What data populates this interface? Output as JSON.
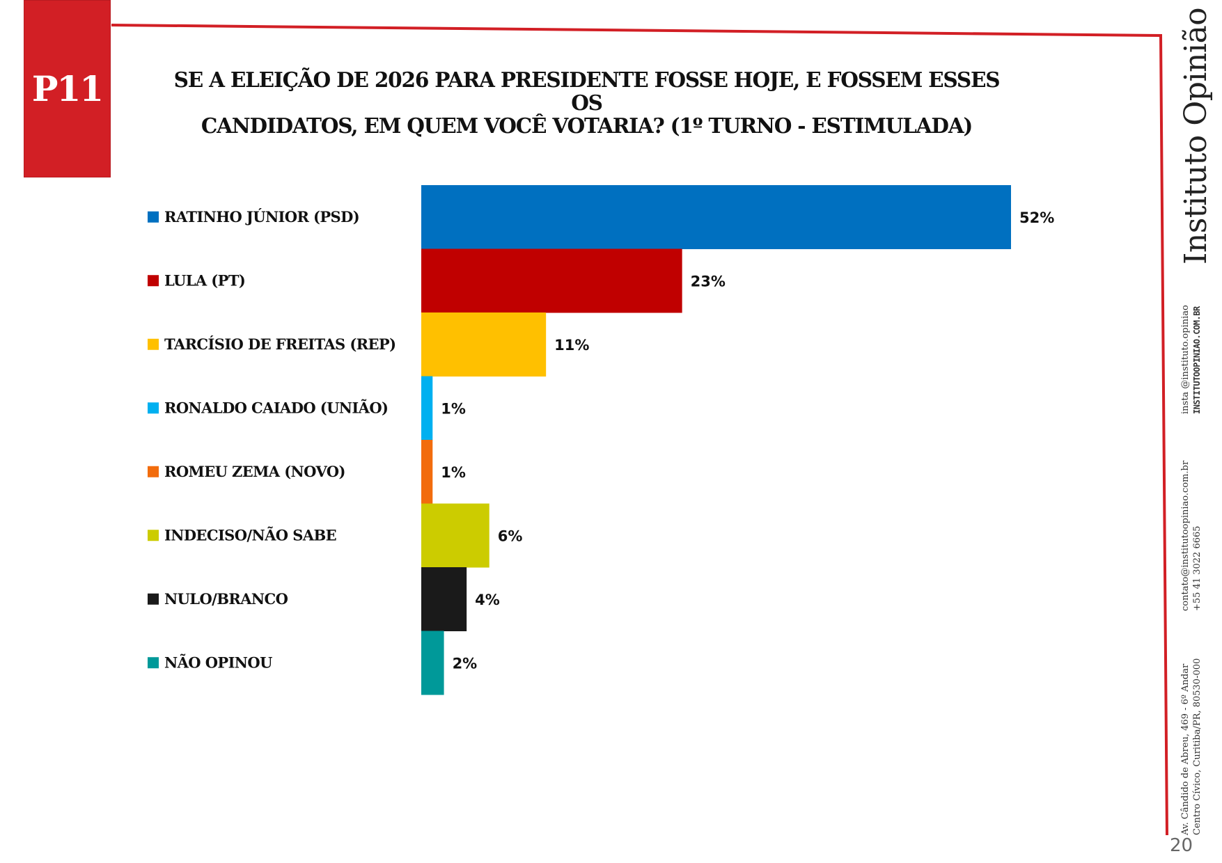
{
  "header": {
    "badge": "P11",
    "title_line1": "SE A ELEIÇÃO DE 2026 PARA PRESIDENTE FOSSE HOJE, E FOSSEM ESSES OS",
    "title_line2": "CANDIDATOS, EM QUEM VOCÊ VOTARIA? (1º TURNO - ESTIMULADA)"
  },
  "chart_data": {
    "type": "bar",
    "orientation": "horizontal",
    "title": "SE A ELEIÇÃO DE 2026 PARA PRESIDENTE FOSSE HOJE, E FOSSEM ESSES OS CANDIDATOS, EM QUEM VOCÊ VOTARIA? (1º TURNO - ESTIMULADA)",
    "categories": [
      "RATINHO JÚNIOR (PSD)",
      "LULA (PT)",
      "TARCÍSIO DE FREITAS (REP)",
      "RONALDO CAIADO (UNIÃO)",
      "ROMEU ZEMA (NOVO)",
      "INDECISO/NÃO SABE",
      "NULO/BRANCO",
      "NÃO OPINOU"
    ],
    "values": [
      52,
      23,
      11,
      1,
      1,
      6,
      4,
      2
    ],
    "value_labels": [
      "52%",
      "23%",
      "11%",
      "1%",
      "1%",
      "6%",
      "4%",
      "2%"
    ],
    "colors": [
      "#0070c0",
      "#c00000",
      "#ffc000",
      "#00b0f0",
      "#f26c0d",
      "#cccc00",
      "#1a1a1a",
      "#009999"
    ],
    "xlim": [
      0,
      52
    ],
    "grid": false,
    "legend": "left"
  },
  "sidebar": {
    "brand": "Instituto Opinião",
    "instagram": "insta @instituto.opiniao",
    "website": "INSTITUTOOPINIAO.COM.BR",
    "email": "contato@institutoopiniao.com.br",
    "phone": "+55 41 3022 6665",
    "address_line1": "Av. Cândido de Abreu, 469 - 6º Andar",
    "address_line2": "Centro Cívico, Curitiba/PR, 80530-000"
  },
  "footer": {
    "page_number": "20"
  }
}
